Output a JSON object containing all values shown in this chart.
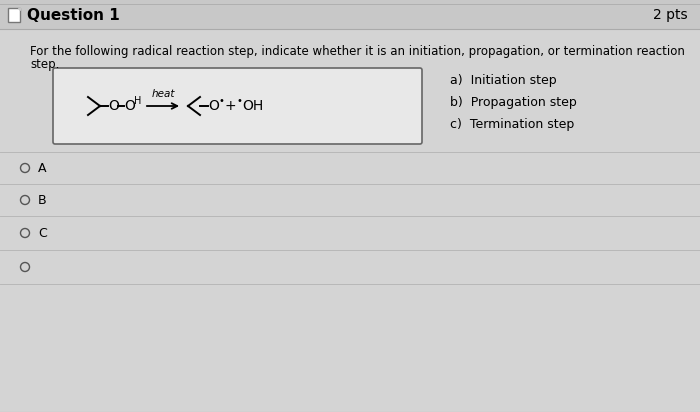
{
  "bg_color": "#c8c8c8",
  "header_bg": "#c8c8c8",
  "content_bg": "#d4d4d4",
  "title": "Question 1",
  "pts": "2 pts",
  "question_line1": "For the following radical reaction step, indicate whether it is an initiation, propagation, or termination reaction",
  "question_line2": "step.",
  "options": [
    "a)  Initiation step",
    "b)  Propagation step",
    "c)  Termination step"
  ],
  "radio_labels": [
    "A",
    "B",
    "C",
    ""
  ],
  "box_bg": "#e8e8e8",
  "title_fontsize": 11,
  "pts_fontsize": 10,
  "question_fontsize": 8.5,
  "option_fontsize": 9,
  "radio_fontsize": 9,
  "chem_fontsize": 10,
  "heat_fontsize": 7.5
}
